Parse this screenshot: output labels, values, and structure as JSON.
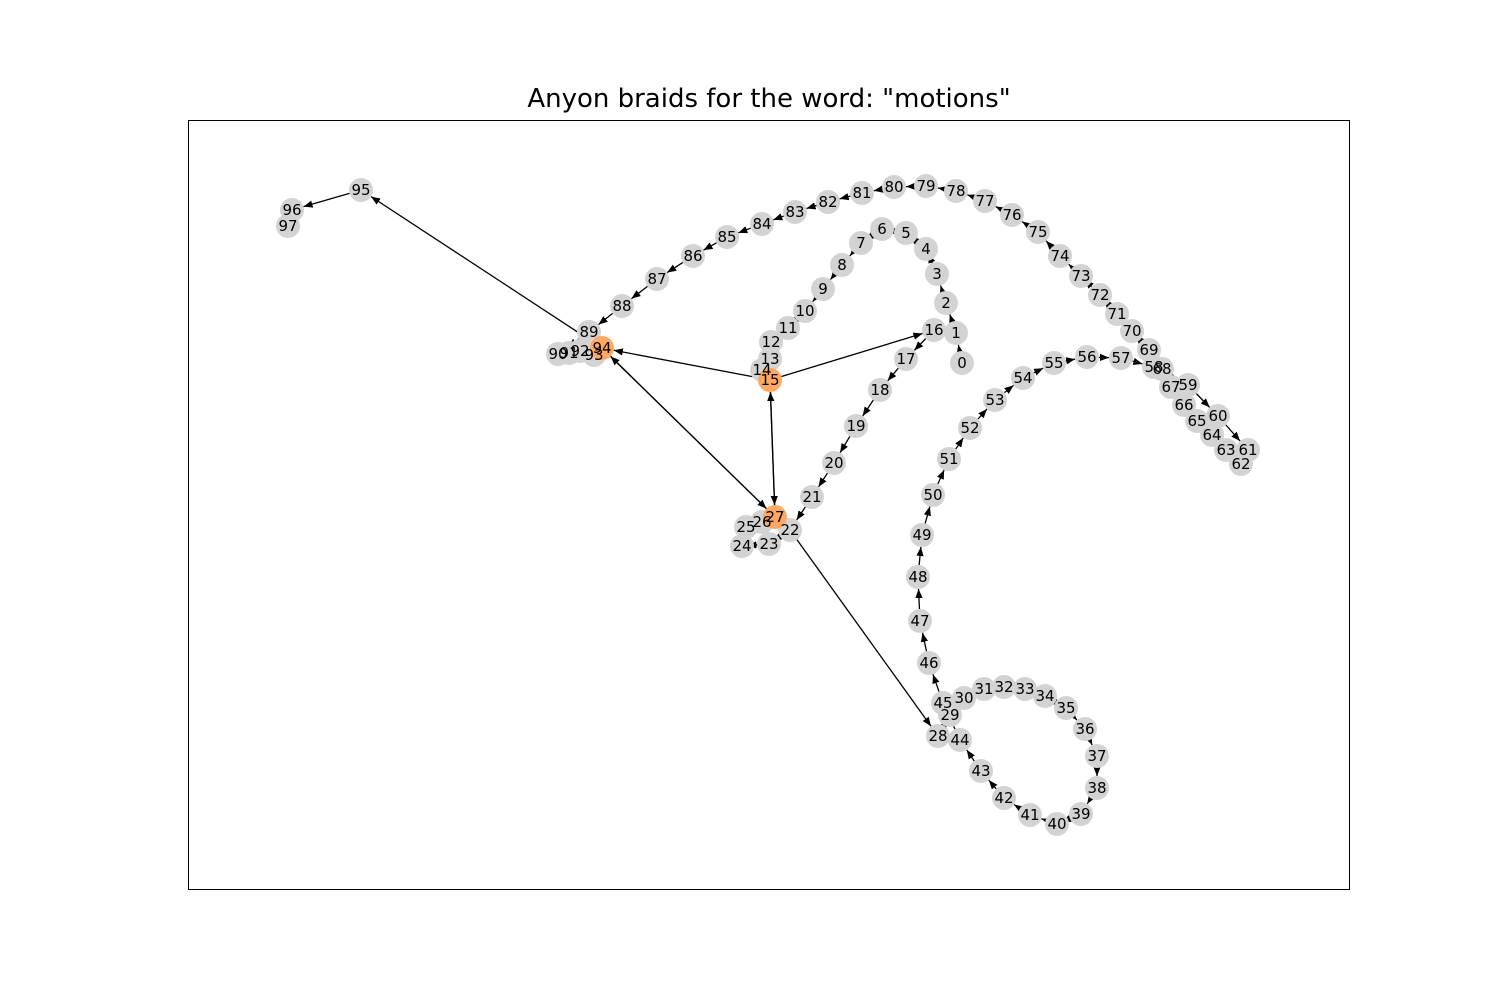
{
  "title": "Anyon braids for the word: \"motions\"",
  "colors": {
    "node": "#d3d3d3",
    "highlight": "#ffa861",
    "edge": "#000000"
  },
  "highlighted_nodes": [
    15,
    27,
    94
  ],
  "node_labels": [
    "0",
    "1",
    "2",
    "3",
    "4",
    "5",
    "6",
    "7",
    "8",
    "9",
    "10",
    "11",
    "12",
    "13",
    "14",
    "15",
    "16",
    "17",
    "18",
    "19",
    "20",
    "21",
    "22",
    "23",
    "24",
    "25",
    "26",
    "27",
    "28",
    "29",
    "30",
    "31",
    "32",
    "33",
    "34",
    "35",
    "36",
    "37",
    "38",
    "39",
    "40",
    "41",
    "42",
    "43",
    "44",
    "45",
    "46",
    "47",
    "48",
    "49",
    "50",
    "51",
    "52",
    "53",
    "54",
    "55",
    "56",
    "57",
    "58",
    "59",
    "60",
    "61",
    "62",
    "63",
    "64",
    "65",
    "66",
    "67",
    "68",
    "69",
    "70",
    "71",
    "72",
    "73",
    "74",
    "75",
    "76",
    "77",
    "78",
    "79",
    "80",
    "81",
    "82",
    "83",
    "84",
    "85",
    "86",
    "87",
    "88",
    "89",
    "90",
    "91",
    "92",
    "93",
    "94",
    "95",
    "96",
    "97"
  ],
  "edges": [
    [
      0,
      1
    ],
    [
      1,
      2
    ],
    [
      2,
      3
    ],
    [
      3,
      4
    ],
    [
      4,
      5
    ],
    [
      5,
      6
    ],
    [
      6,
      7
    ],
    [
      7,
      8
    ],
    [
      8,
      9
    ],
    [
      9,
      10
    ],
    [
      10,
      11
    ],
    [
      11,
      12
    ],
    [
      12,
      13
    ],
    [
      13,
      14
    ],
    [
      14,
      15
    ],
    [
      15,
      16
    ],
    [
      16,
      17
    ],
    [
      17,
      18
    ],
    [
      18,
      19
    ],
    [
      19,
      20
    ],
    [
      20,
      21
    ],
    [
      21,
      22
    ],
    [
      22,
      23
    ],
    [
      23,
      24
    ],
    [
      24,
      25
    ],
    [
      25,
      26
    ],
    [
      26,
      27
    ],
    [
      27,
      15
    ],
    [
      15,
      27
    ],
    [
      27,
      94
    ],
    [
      94,
      27
    ],
    [
      15,
      94
    ],
    [
      22,
      28
    ],
    [
      28,
      29
    ],
    [
      29,
      30
    ],
    [
      30,
      31
    ],
    [
      31,
      32
    ],
    [
      32,
      33
    ],
    [
      33,
      34
    ],
    [
      34,
      35
    ],
    [
      35,
      36
    ],
    [
      36,
      37
    ],
    [
      37,
      38
    ],
    [
      38,
      39
    ],
    [
      39,
      40
    ],
    [
      40,
      41
    ],
    [
      41,
      42
    ],
    [
      42,
      43
    ],
    [
      43,
      44
    ],
    [
      44,
      45
    ],
    [
      45,
      46
    ],
    [
      46,
      47
    ],
    [
      47,
      48
    ],
    [
      48,
      49
    ],
    [
      49,
      50
    ],
    [
      50,
      51
    ],
    [
      51,
      52
    ],
    [
      52,
      53
    ],
    [
      53,
      54
    ],
    [
      54,
      55
    ],
    [
      55,
      56
    ],
    [
      56,
      57
    ],
    [
      57,
      58
    ],
    [
      58,
      59
    ],
    [
      59,
      60
    ],
    [
      60,
      61
    ],
    [
      61,
      62
    ],
    [
      62,
      63
    ],
    [
      63,
      64
    ],
    [
      64,
      65
    ],
    [
      65,
      66
    ],
    [
      66,
      67
    ],
    [
      67,
      68
    ],
    [
      68,
      69
    ],
    [
      69,
      70
    ],
    [
      70,
      71
    ],
    [
      71,
      72
    ],
    [
      72,
      73
    ],
    [
      73,
      74
    ],
    [
      74,
      75
    ],
    [
      75,
      76
    ],
    [
      76,
      77
    ],
    [
      77,
      78
    ],
    [
      78,
      79
    ],
    [
      79,
      80
    ],
    [
      80,
      81
    ],
    [
      81,
      82
    ],
    [
      82,
      83
    ],
    [
      83,
      84
    ],
    [
      84,
      85
    ],
    [
      85,
      86
    ],
    [
      86,
      87
    ],
    [
      87,
      88
    ],
    [
      88,
      89
    ],
    [
      89,
      90
    ],
    [
      90,
      91
    ],
    [
      91,
      92
    ],
    [
      92,
      93
    ],
    [
      93,
      94
    ],
    [
      94,
      95
    ],
    [
      95,
      96
    ],
    [
      96,
      97
    ]
  ]
}
